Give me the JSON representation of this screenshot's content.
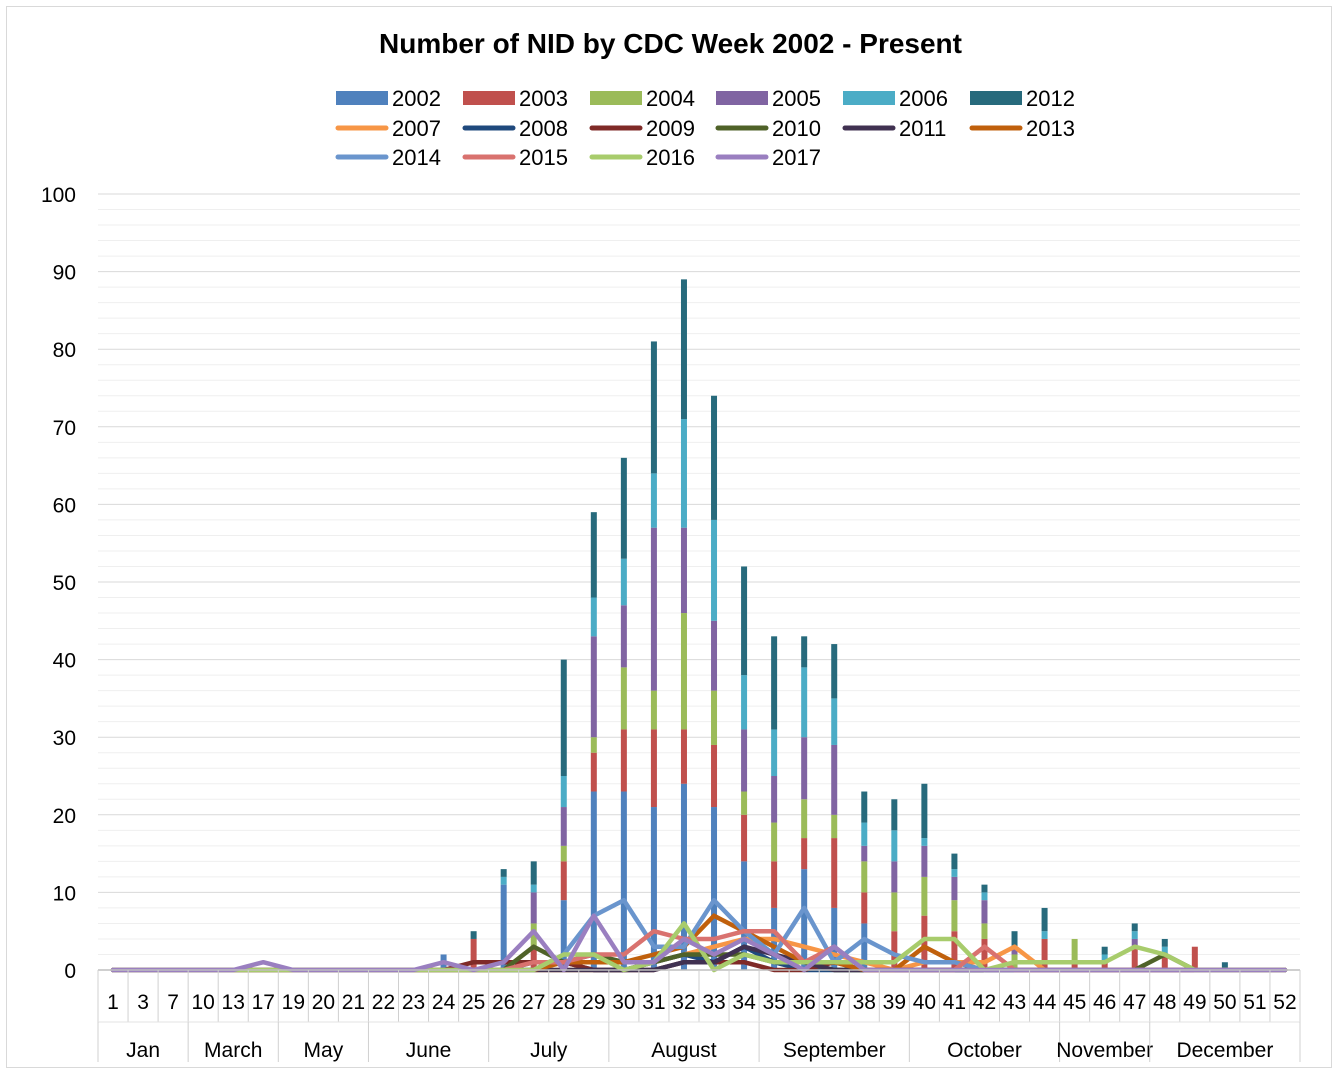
{
  "chart_data": {
    "type": "bar",
    "title": "Number of NID by CDC Week 2002 - Present",
    "xlabel": "",
    "ylabel": "",
    "ylim": [
      0,
      100
    ],
    "y_ticks": [
      "0",
      "10",
      "20",
      "30",
      "40",
      "50",
      "60",
      "70",
      "80",
      "90",
      "100"
    ],
    "grid": true,
    "legend_position": "top",
    "categories": [
      "1",
      "3",
      "7",
      "10",
      "13",
      "17",
      "19",
      "20",
      "21",
      "22",
      "23",
      "24",
      "25",
      "26",
      "27",
      "28",
      "29",
      "30",
      "31",
      "32",
      "33",
      "34",
      "35",
      "36",
      "37",
      "38",
      "39",
      "40",
      "41",
      "42",
      "43",
      "44",
      "45",
      "46",
      "47",
      "48",
      "49",
      "50",
      "51",
      "52"
    ],
    "month_groups": [
      {
        "label": "Jan",
        "span": 3
      },
      {
        "label": "March",
        "span": 3
      },
      {
        "label": "May",
        "span": 3
      },
      {
        "label": "June",
        "span": 4
      },
      {
        "label": "July",
        "span": 4
      },
      {
        "label": "August",
        "span": 5
      },
      {
        "label": "September",
        "span": 5
      },
      {
        "label": "October",
        "span": 5
      },
      {
        "label": "November",
        "span": 3
      },
      {
        "label": "December",
        "span": 5
      }
    ],
    "bar_series": [
      {
        "name": "2002",
        "color": "#4f81bd",
        "values": [
          0,
          0,
          0,
          0,
          0,
          0,
          0,
          0,
          0,
          0,
          0,
          2,
          0,
          11,
          0,
          9,
          23,
          23,
          21,
          24,
          21,
          14,
          8,
          13,
          8,
          6,
          0,
          0,
          0,
          0,
          0,
          0,
          0,
          0,
          0,
          0,
          0,
          0,
          0,
          0
        ]
      },
      {
        "name": "2003",
        "color": "#c0504d",
        "values": [
          0,
          0,
          0,
          0,
          0,
          0,
          0,
          0,
          0,
          0,
          0,
          0,
          4,
          0,
          3,
          5,
          5,
          8,
          10,
          7,
          8,
          6,
          6,
          4,
          9,
          4,
          5,
          7,
          5,
          4,
          0,
          4,
          1,
          1,
          3,
          2,
          3,
          0,
          0,
          0
        ]
      },
      {
        "name": "2004",
        "color": "#9bbb59",
        "values": [
          0,
          0,
          0,
          0,
          0,
          0,
          0,
          0,
          0,
          0,
          0,
          0,
          0,
          0,
          3,
          2,
          2,
          8,
          5,
          15,
          7,
          3,
          5,
          5,
          3,
          4,
          5,
          5,
          4,
          2,
          2,
          0,
          3,
          0,
          0,
          0,
          0,
          0,
          0,
          0
        ]
      },
      {
        "name": "2005",
        "color": "#8064a2",
        "values": [
          0,
          0,
          0,
          0,
          0,
          0,
          0,
          0,
          0,
          0,
          0,
          0,
          0,
          0,
          4,
          5,
          13,
          8,
          21,
          11,
          9,
          8,
          6,
          8,
          9,
          2,
          4,
          4,
          3,
          3,
          1,
          0,
          0,
          0,
          1,
          0,
          0,
          0,
          0,
          0
        ]
      },
      {
        "name": "2006",
        "color": "#4bacc6",
        "values": [
          0,
          0,
          0,
          0,
          0,
          0,
          0,
          0,
          0,
          0,
          0,
          0,
          0,
          1,
          1,
          4,
          5,
          6,
          7,
          14,
          13,
          7,
          6,
          9,
          6,
          3,
          4,
          1,
          1,
          1,
          0,
          1,
          0,
          1,
          1,
          1,
          0,
          0,
          0,
          0
        ]
      },
      {
        "name": "2012",
        "color": "#276a7c",
        "values": [
          0,
          0,
          0,
          0,
          0,
          0,
          0,
          0,
          0,
          0,
          0,
          0,
          1,
          1,
          3,
          15,
          11,
          13,
          17,
          18,
          16,
          14,
          12,
          4,
          7,
          4,
          4,
          7,
          2,
          1,
          2,
          3,
          0,
          1,
          1,
          1,
          0,
          1,
          0,
          0
        ]
      }
    ],
    "line_series": [
      {
        "name": "2007",
        "color": "#f79646",
        "values": [
          0,
          0,
          0,
          0,
          0,
          0,
          0,
          0,
          0,
          0,
          0,
          0,
          0,
          0,
          0,
          0,
          0,
          0,
          1,
          2,
          3,
          4,
          4,
          3,
          2,
          1,
          0,
          1,
          1,
          1,
          3,
          0,
          0,
          0,
          0,
          0,
          0,
          0,
          0,
          0
        ]
      },
      {
        "name": "2008",
        "color": "#1f497d",
        "values": [
          0,
          0,
          0,
          0,
          0,
          0,
          0,
          0,
          0,
          0,
          0,
          0,
          0,
          0,
          1,
          1,
          0,
          0,
          1,
          2,
          1,
          3,
          1,
          0,
          0,
          0,
          0,
          0,
          0,
          0,
          0,
          0,
          0,
          0,
          0,
          0,
          0,
          0,
          0,
          0
        ]
      },
      {
        "name": "2009",
        "color": "#7f2a27",
        "values": [
          0,
          0,
          0,
          0,
          0,
          0,
          0,
          0,
          0,
          0,
          0,
          0,
          1,
          1,
          1,
          1,
          0,
          0,
          0,
          1,
          1,
          1,
          0,
          0,
          1,
          0,
          0,
          0,
          0,
          0,
          0,
          0,
          0,
          0,
          0,
          0,
          0,
          0,
          0,
          0
        ]
      },
      {
        "name": "2010",
        "color": "#4f6228",
        "values": [
          0,
          0,
          0,
          0,
          0,
          0,
          0,
          0,
          0,
          0,
          0,
          0,
          0,
          0,
          3,
          1,
          2,
          1,
          1,
          2,
          2,
          2,
          1,
          1,
          0,
          0,
          0,
          0,
          0,
          0,
          0,
          0,
          0,
          0,
          0,
          2,
          0,
          0,
          0,
          0
        ]
      },
      {
        "name": "2011",
        "color": "#403151",
        "values": [
          0,
          0,
          0,
          0,
          0,
          0,
          0,
          0,
          0,
          0,
          0,
          0,
          0,
          0,
          0,
          0,
          0,
          0,
          0,
          1,
          1,
          3,
          2,
          1,
          0,
          0,
          0,
          0,
          0,
          0,
          0,
          0,
          0,
          0,
          0,
          0,
          0,
          0,
          0,
          0
        ]
      },
      {
        "name": "2013",
        "color": "#c0600c",
        "values": [
          0,
          0,
          0,
          0,
          0,
          0,
          0,
          0,
          0,
          0,
          0,
          0,
          0,
          0,
          0,
          1,
          1,
          1,
          2,
          3,
          7,
          5,
          3,
          1,
          1,
          0,
          0,
          3,
          1,
          0,
          0,
          0,
          0,
          0,
          0,
          0,
          0,
          0,
          0,
          0
        ]
      },
      {
        "name": "2014",
        "color": "#6a95cd",
        "values": [
          0,
          0,
          0,
          0,
          0,
          0,
          0,
          0,
          0,
          0,
          0,
          0,
          0,
          0,
          0,
          2,
          7,
          9,
          3,
          3,
          9,
          5,
          2,
          8,
          1,
          4,
          2,
          1,
          1,
          0,
          0,
          0,
          0,
          0,
          0,
          0,
          0,
          0,
          0,
          0
        ]
      },
      {
        "name": "2015",
        "color": "#d9726f",
        "values": [
          0,
          0,
          0,
          0,
          0,
          0,
          0,
          0,
          0,
          0,
          0,
          0,
          0,
          0,
          1,
          1,
          2,
          2,
          5,
          4,
          4,
          5,
          5,
          1,
          3,
          0,
          0,
          0,
          0,
          3,
          0,
          0,
          0,
          0,
          0,
          0,
          0,
          0,
          0,
          0
        ]
      },
      {
        "name": "2016",
        "color": "#a8cc6c",
        "values": [
          0,
          0,
          0,
          0,
          0,
          0,
          0,
          0,
          0,
          0,
          0,
          0,
          0,
          0,
          0,
          2,
          2,
          0,
          1,
          6,
          0,
          2,
          1,
          1,
          1,
          1,
          1,
          4,
          4,
          0,
          1,
          1,
          1,
          1,
          3,
          2,
          0,
          0,
          0,
          0
        ]
      },
      {
        "name": "2017",
        "color": "#9a7fc0",
        "values": [
          0,
          0,
          0,
          0,
          0,
          1,
          0,
          0,
          0,
          0,
          0,
          1,
          0,
          1,
          5,
          0,
          7,
          1,
          1,
          4,
          2,
          4,
          2,
          0,
          3,
          0,
          0,
          0,
          0,
          0,
          0,
          0,
          0,
          0,
          0,
          0,
          0,
          0,
          0,
          0
        ]
      }
    ],
    "legend_order": [
      "2002",
      "2003",
      "2004",
      "2005",
      "2006",
      "2012",
      "2007",
      "2008",
      "2009",
      "2010",
      "2011",
      "2013",
      "2014",
      "2015",
      "2016",
      "2017"
    ]
  }
}
